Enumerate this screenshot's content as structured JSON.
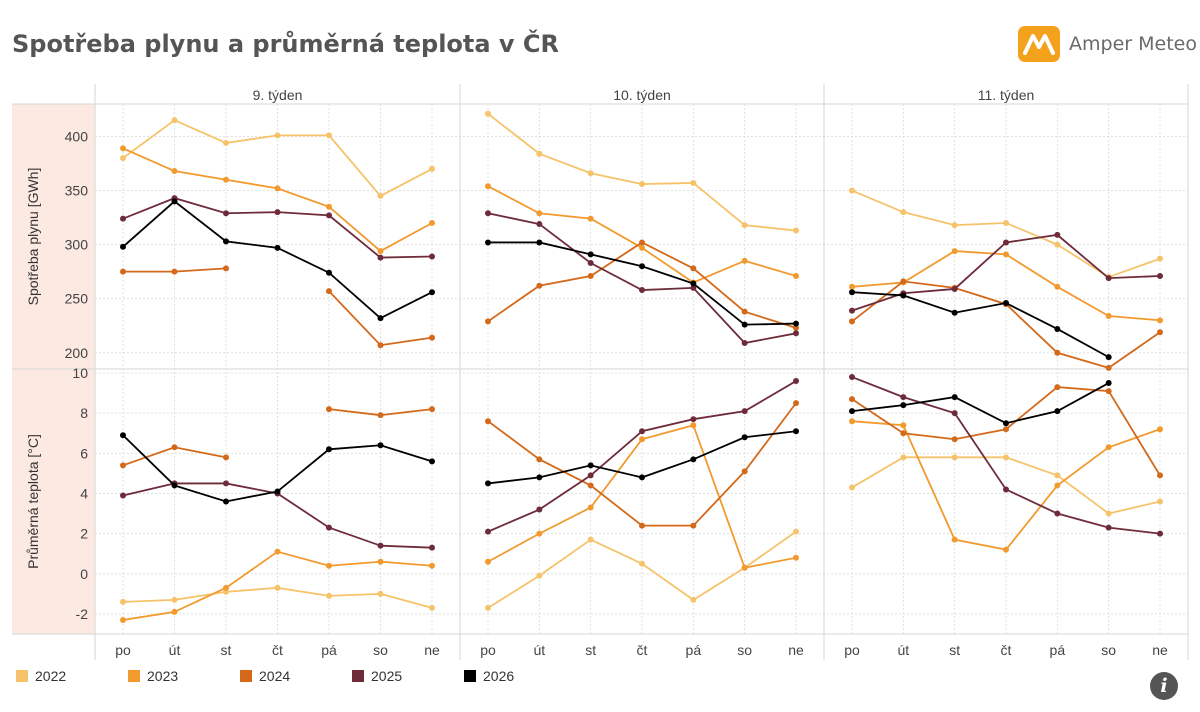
{
  "header": {
    "title": "Spotřeba plynu a průměrná teplota v ČR"
  },
  "brand": {
    "name": "Amper Meteo",
    "icon": "amper-logo-icon",
    "color": "#f4a21b"
  },
  "info_icon": {
    "icon": "info-icon",
    "glyph": "i"
  },
  "chart_data": {
    "type": "line",
    "weeks": [
      "9. týden",
      "10. týden",
      "11. týden"
    ],
    "days": [
      "po",
      "út",
      "st",
      "čt",
      "pá",
      "so",
      "ne"
    ],
    "rows": [
      {
        "key": "gas",
        "ylabel": "Spotřeba plynu [GWh]",
        "ylim": [
          185,
          430
        ],
        "ticks": [
          200,
          250,
          300,
          350,
          400
        ]
      },
      {
        "key": "temp",
        "ylabel": "Průměrná teplota [°C]",
        "ylim": [
          -3,
          10.2
        ],
        "ticks": [
          -2,
          0,
          2,
          4,
          6,
          8,
          10
        ]
      }
    ],
    "grid": true,
    "legend_position": "bottom-left",
    "series": [
      {
        "name": "2022",
        "color": "#f6c36a",
        "gas": [
          [
            380,
            415,
            394,
            401,
            401,
            345,
            370
          ],
          [
            421,
            384,
            366,
            356,
            357,
            318,
            313
          ],
          [
            350,
            330,
            318,
            320,
            300,
            270,
            287
          ]
        ],
        "temp": [
          [
            -1.4,
            -1.3,
            -0.9,
            -0.7,
            -1.1,
            -1.0,
            -1.7
          ],
          [
            -1.7,
            -0.1,
            1.7,
            0.5,
            -1.3,
            0.3,
            2.1
          ],
          [
            4.3,
            5.8,
            5.8,
            5.8,
            4.9,
            3.0,
            3.6
          ]
        ]
      },
      {
        "name": "2023",
        "color": "#f29a2e",
        "gas": [
          [
            389,
            368,
            360,
            352,
            335,
            294,
            320
          ],
          [
            354,
            329,
            324,
            297,
            265,
            285,
            271
          ],
          [
            261,
            265,
            294,
            291,
            261,
            234,
            230
          ]
        ],
        "temp": [
          [
            -2.3,
            -1.9,
            -0.7,
            1.1,
            0.4,
            0.6,
            0.4
          ],
          [
            0.6,
            2.0,
            3.3,
            6.7,
            7.4,
            0.3,
            0.8
          ],
          [
            7.6,
            7.4,
            1.7,
            1.2,
            4.4,
            6.3,
            7.2
          ]
        ]
      },
      {
        "name": "2024",
        "color": "#d4691a",
        "gas": [
          [
            275,
            275,
            278,
            null,
            257,
            207,
            214
          ],
          [
            229,
            262,
            271,
            302,
            278,
            238,
            223
          ],
          [
            229,
            266,
            260,
            245,
            200,
            186,
            219
          ]
        ],
        "temp": [
          [
            5.4,
            6.3,
            5.8,
            null,
            8.2,
            7.9,
            8.2
          ],
          [
            7.6,
            5.7,
            4.4,
            2.4,
            2.4,
            5.1,
            8.5
          ],
          [
            8.7,
            7.0,
            6.7,
            7.2,
            9.3,
            9.1,
            4.9
          ]
        ]
      },
      {
        "name": "2025",
        "color": "#6e2c3b",
        "gas": [
          [
            324,
            343,
            329,
            330,
            327,
            288,
            289
          ],
          [
            329,
            319,
            283,
            258,
            260,
            209,
            218
          ],
          [
            239,
            255,
            259,
            302,
            309,
            269,
            271
          ]
        ],
        "temp": [
          [
            3.9,
            4.5,
            4.5,
            4.0,
            2.3,
            1.4,
            1.3
          ],
          [
            2.1,
            3.2,
            4.9,
            7.1,
            7.7,
            8.1,
            9.6
          ],
          [
            9.8,
            8.8,
            8.0,
            4.2,
            3.0,
            2.3,
            2.0
          ]
        ]
      },
      {
        "name": "2026",
        "color": "#000000",
        "gas": [
          [
            298,
            340,
            303,
            297,
            274,
            232,
            256
          ],
          [
            302,
            302,
            291,
            280,
            264,
            226,
            227
          ],
          [
            256,
            253,
            237,
            246,
            222,
            196,
            null
          ]
        ],
        "temp": [
          [
            6.9,
            4.4,
            3.6,
            4.1,
            6.2,
            6.4,
            5.6
          ],
          [
            4.5,
            4.8,
            5.4,
            4.8,
            5.7,
            6.8,
            7.1
          ],
          [
            8.1,
            8.4,
            8.8,
            7.5,
            8.1,
            9.5,
            null
          ]
        ]
      }
    ]
  }
}
